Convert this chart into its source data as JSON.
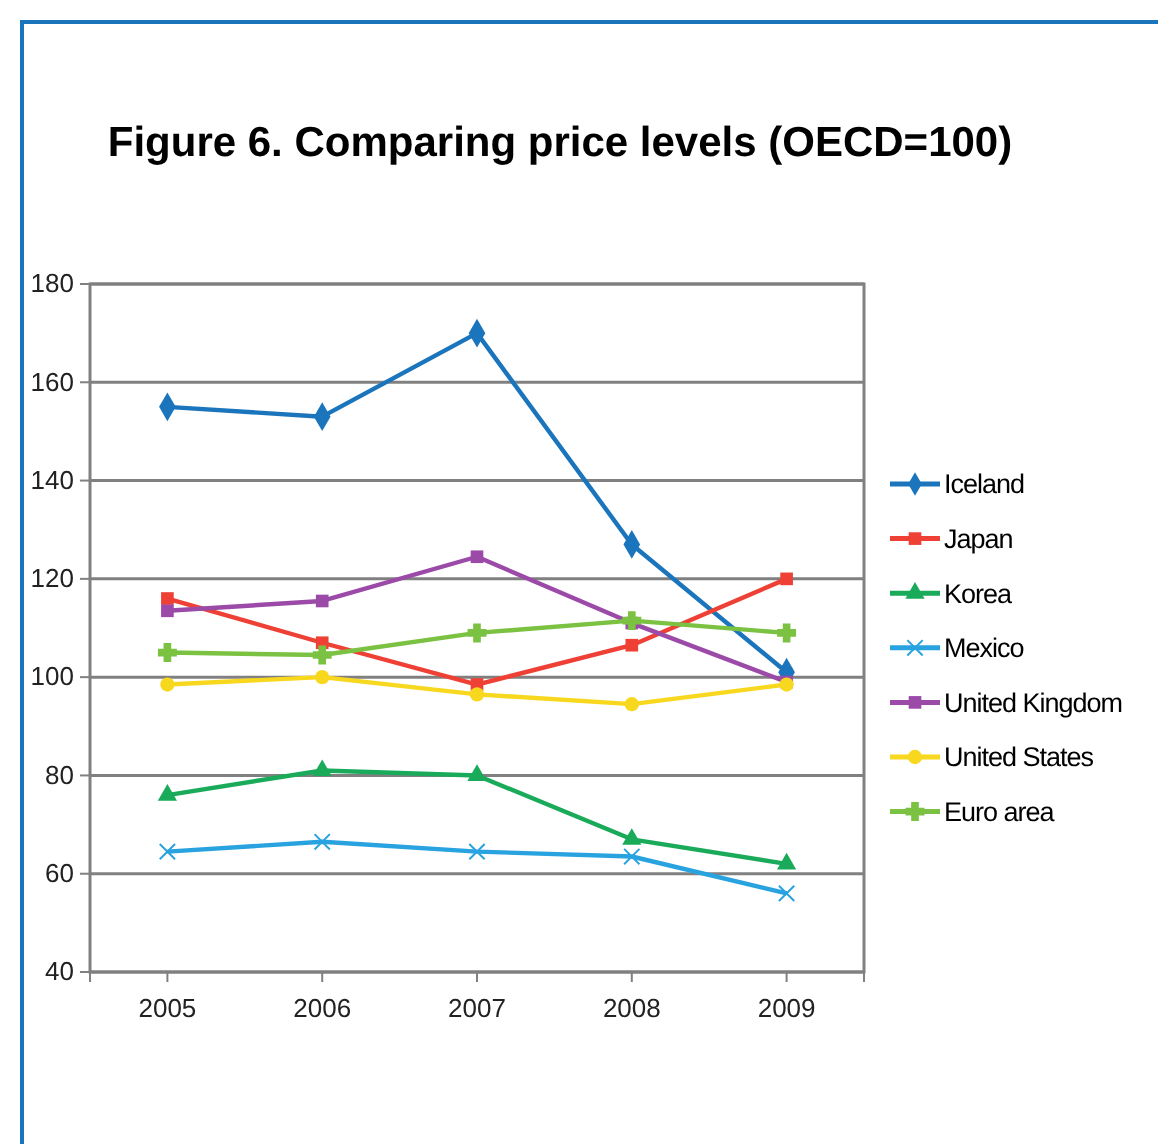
{
  "chart_data": {
    "type": "line",
    "title": "Figure 6. Comparing price levels (OECD=100)",
    "categories": [
      "2005",
      "2006",
      "2007",
      "2008",
      "2009"
    ],
    "series": [
      {
        "name": "Iceland",
        "color": "#1a75bc",
        "marker": "diamond",
        "values": [
          155,
          153,
          170,
          127,
          101
        ]
      },
      {
        "name": "Japan",
        "color": "#ee4035",
        "marker": "square",
        "values": [
          116,
          107,
          98.5,
          106.5,
          120
        ]
      },
      {
        "name": "Korea",
        "color": "#1aab5a",
        "marker": "triangle",
        "values": [
          76,
          81,
          80,
          67,
          62
        ]
      },
      {
        "name": "Mexico",
        "color": "#29a3e0",
        "marker": "cross",
        "values": [
          64.5,
          66.5,
          64.5,
          63.5,
          56
        ]
      },
      {
        "name": "United Kingdom",
        "color": "#9b4aa8",
        "marker": "square",
        "values": [
          113.5,
          115.5,
          124.5,
          111,
          99
        ]
      },
      {
        "name": "United States",
        "color": "#f8d81f",
        "marker": "circle",
        "values": [
          98.5,
          100,
          96.5,
          94.5,
          98.5
        ]
      },
      {
        "name": "Euro area",
        "color": "#7cc242",
        "marker": "plus",
        "values": [
          105,
          104.5,
          109,
          111.5,
          109
        ]
      }
    ],
    "ylim": [
      40,
      180
    ],
    "yticks": [
      40,
      60,
      80,
      100,
      120,
      140,
      160,
      180
    ],
    "grid": "y",
    "legend": "right"
  }
}
